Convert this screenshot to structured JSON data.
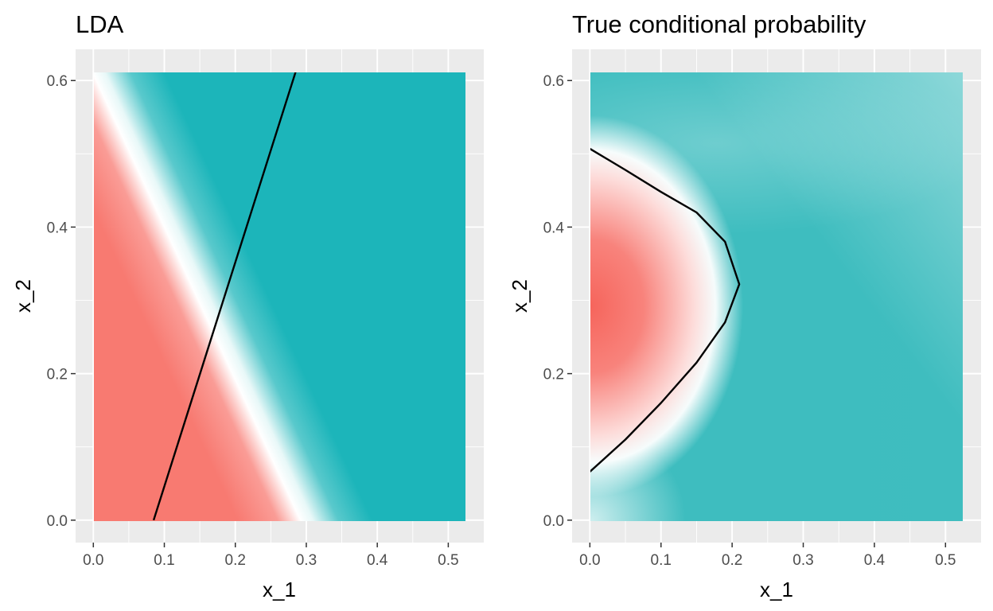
{
  "chart_data": [
    {
      "type": "heatmap",
      "title": "LDA",
      "xlabel": "x_1",
      "ylabel": "x_2",
      "xlim": [
        -0.025,
        0.55
      ],
      "ylim": [
        -0.0306,
        0.6426
      ],
      "x_ticks": [
        "0.0",
        "0.1",
        "0.2",
        "0.3",
        "0.4",
        "0.5"
      ],
      "y_ticks": [
        "0.0",
        "0.2",
        "0.4",
        "0.6"
      ],
      "fill_extent": {
        "x": [
          0,
          0.525
        ],
        "y": [
          0,
          0.612
        ]
      },
      "decision_boundary": {
        "x": [
          0.085,
          0.285
        ],
        "y": [
          0.0,
          0.612
        ]
      },
      "grid": true,
      "legend": "none",
      "colors": {
        "class_a": "#F8766D",
        "midpoint": "#FFFFFF",
        "class_b": "#00BFC4",
        "boundary": "#000000"
      }
    },
    {
      "type": "heatmap",
      "title": "True conditional probability",
      "xlabel": "x_1",
      "ylabel": "x_2",
      "xlim": [
        -0.025,
        0.55
      ],
      "ylim": [
        -0.0306,
        0.6426
      ],
      "x_ticks": [
        "0.0",
        "0.1",
        "0.2",
        "0.3",
        "0.4",
        "0.5"
      ],
      "y_ticks": [
        "0.0",
        "0.2",
        "0.4",
        "0.6"
      ],
      "fill_extent": {
        "x": [
          0,
          0.525
        ],
        "y": [
          0,
          0.612
        ]
      },
      "decision_boundary": {
        "x": [
          0.0,
          0.05,
          0.1,
          0.15,
          0.19,
          0.21,
          0.19,
          0.15,
          0.1,
          0.05,
          0.0
        ],
        "y": [
          0.066,
          0.11,
          0.16,
          0.215,
          0.27,
          0.322,
          0.38,
          0.42,
          0.448,
          0.478,
          0.507
        ]
      },
      "grid": true,
      "legend": "none",
      "colors": {
        "class_a": "#F8766D",
        "midpoint": "#FFFFFF",
        "class_b": "#00BFC4",
        "boundary": "#000000"
      }
    }
  ]
}
